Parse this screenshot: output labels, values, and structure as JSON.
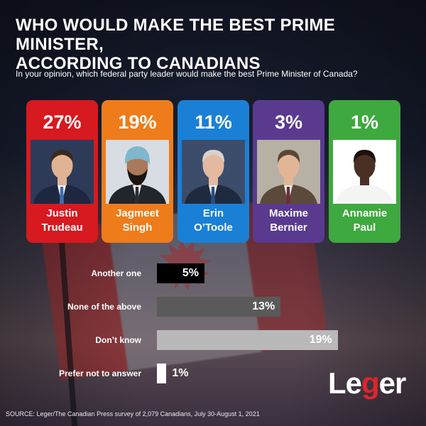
{
  "header": {
    "title_line1": "WHO WOULD MAKE THE BEST PRIME MINISTER,",
    "title_line2": "ACCORDING TO CANADIANS",
    "subtitle": "In your opinion, which federal party leader would make the best Prime Minister of Canada?"
  },
  "colors": {
    "trudeau": "#d71920",
    "singh": "#ef7c1a",
    "otoole": "#1a80d6",
    "bernier": "#5a3a8f",
    "paul": "#3ea93e",
    "another_one": "#000000",
    "none_of_above": "#5a5a5a",
    "dont_know": "#b9b9b9",
    "prefer_not": "#ffffff"
  },
  "chart_data": [
    {
      "type": "bar",
      "categories": [
        "Justin Trudeau",
        "Jagmeet Singh",
        "Erin O’Toole",
        "Maxime Bernier",
        "Annamie Paul"
      ],
      "values": [
        27,
        19,
        11,
        3,
        1
      ],
      "labels": [
        "27%",
        "19%",
        "11%",
        "3%",
        "1%"
      ],
      "name_lines": [
        [
          "Justin",
          "Trudeau"
        ],
        [
          "Jagmeet",
          "Singh"
        ],
        [
          "Erin",
          "O’Toole"
        ],
        [
          "Maxime",
          "Bernier"
        ],
        [
          "Annamie",
          "Paul"
        ]
      ],
      "icons": [
        "portrait-trudeau",
        "portrait-singh",
        "portrait-otoole",
        "portrait-bernier",
        "portrait-paul"
      ]
    },
    {
      "type": "bar",
      "categories": [
        "Another one",
        "None of the above",
        "Don’t know",
        "Prefer not to answer"
      ],
      "values": [
        5,
        13,
        19,
        1
      ],
      "labels": [
        "5%",
        "13%",
        "19%",
        "1%"
      ]
    }
  ],
  "footer": {
    "source": "SOURCE: Leger/The Canadian Press survey of 2,079 Canadians, July 30-August 1, 2021",
    "logo_part1": "Le",
    "logo_accent": "g",
    "logo_part2": "er"
  }
}
